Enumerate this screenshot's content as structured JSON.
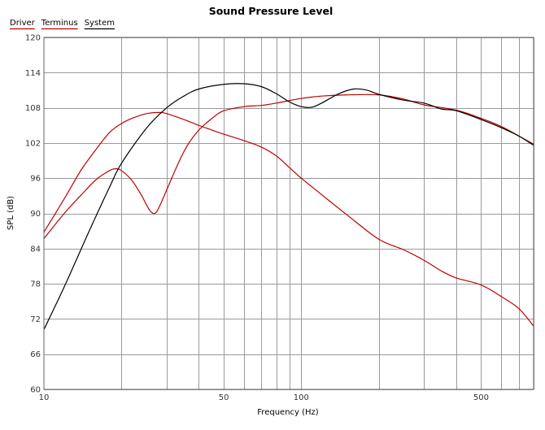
{
  "chart_data": {
    "type": "line",
    "title": "Sound Pressure Level",
    "xlabel": "Frequency (Hz)",
    "ylabel": "SPL (dB)",
    "xscale": "log",
    "xlim": [
      10,
      800
    ],
    "ylim": [
      60,
      120
    ],
    "grid": true,
    "legend_position": "top-left",
    "x_tick_labels": [
      {
        "value": 10,
        "label": "10"
      },
      {
        "value": 50,
        "label": "50"
      },
      {
        "value": 100,
        "label": "100"
      },
      {
        "value": 500,
        "label": "500"
      }
    ],
    "y_ticks": [
      60,
      66,
      72,
      78,
      84,
      90,
      96,
      102,
      108,
      114,
      120
    ],
    "series": [
      {
        "name": "Driver",
        "color": "#c00000",
        "x": [
          10,
          12,
          14,
          16,
          18,
          20,
          22,
          25,
          28,
          30,
          35,
          40,
          45,
          50,
          60,
          70,
          80,
          90,
          100,
          120,
          150,
          200,
          250,
          300,
          350,
          400,
          500,
          600,
          700,
          800
        ],
        "y": [
          86.8,
          92.5,
          97.5,
          101.0,
          103.8,
          105.3,
          106.2,
          107.0,
          107.2,
          107.0,
          106.0,
          105.0,
          104.2,
          103.5,
          102.4,
          101.3,
          99.8,
          97.8,
          96.0,
          93.2,
          89.8,
          85.6,
          83.8,
          82.0,
          80.2,
          79.0,
          77.8,
          75.8,
          73.8,
          70.8
        ]
      },
      {
        "name": "Terminus",
        "color": "#c00000",
        "x": [
          10,
          12,
          14,
          16,
          18,
          19,
          20,
          22,
          24,
          25,
          26,
          27,
          28,
          30,
          33,
          36,
          40,
          45,
          50,
          60,
          70,
          80,
          100,
          120,
          150,
          200,
          250,
          300,
          400,
          500,
          600,
          700,
          800
        ],
        "y": [
          85.7,
          90.0,
          93.2,
          95.8,
          97.3,
          97.6,
          97.3,
          95.6,
          93.0,
          91.5,
          90.3,
          90.0,
          91.0,
          94.0,
          98.2,
          101.5,
          104.2,
          106.2,
          107.5,
          108.2,
          108.4,
          108.8,
          109.6,
          110.0,
          110.2,
          110.2,
          109.5,
          108.5,
          107.6,
          106.2,
          104.8,
          103.2,
          101.8
        ]
      },
      {
        "name": "System",
        "color": "#000000",
        "x": [
          10,
          12,
          15,
          18,
          20,
          25,
          30,
          35,
          40,
          50,
          60,
          70,
          80,
          90,
          100,
          110,
          120,
          140,
          160,
          180,
          200,
          250,
          300,
          350,
          400,
          500,
          600,
          700,
          800
        ],
        "y": [
          70.2,
          77.5,
          87.0,
          94.5,
          98.5,
          104.5,
          108.0,
          110.0,
          111.2,
          112.0,
          112.1,
          111.6,
          110.4,
          109.0,
          108.2,
          108.1,
          108.8,
          110.4,
          111.2,
          111.0,
          110.3,
          109.3,
          108.8,
          107.8,
          107.5,
          106.0,
          104.6,
          103.2,
          101.6
        ]
      }
    ]
  }
}
